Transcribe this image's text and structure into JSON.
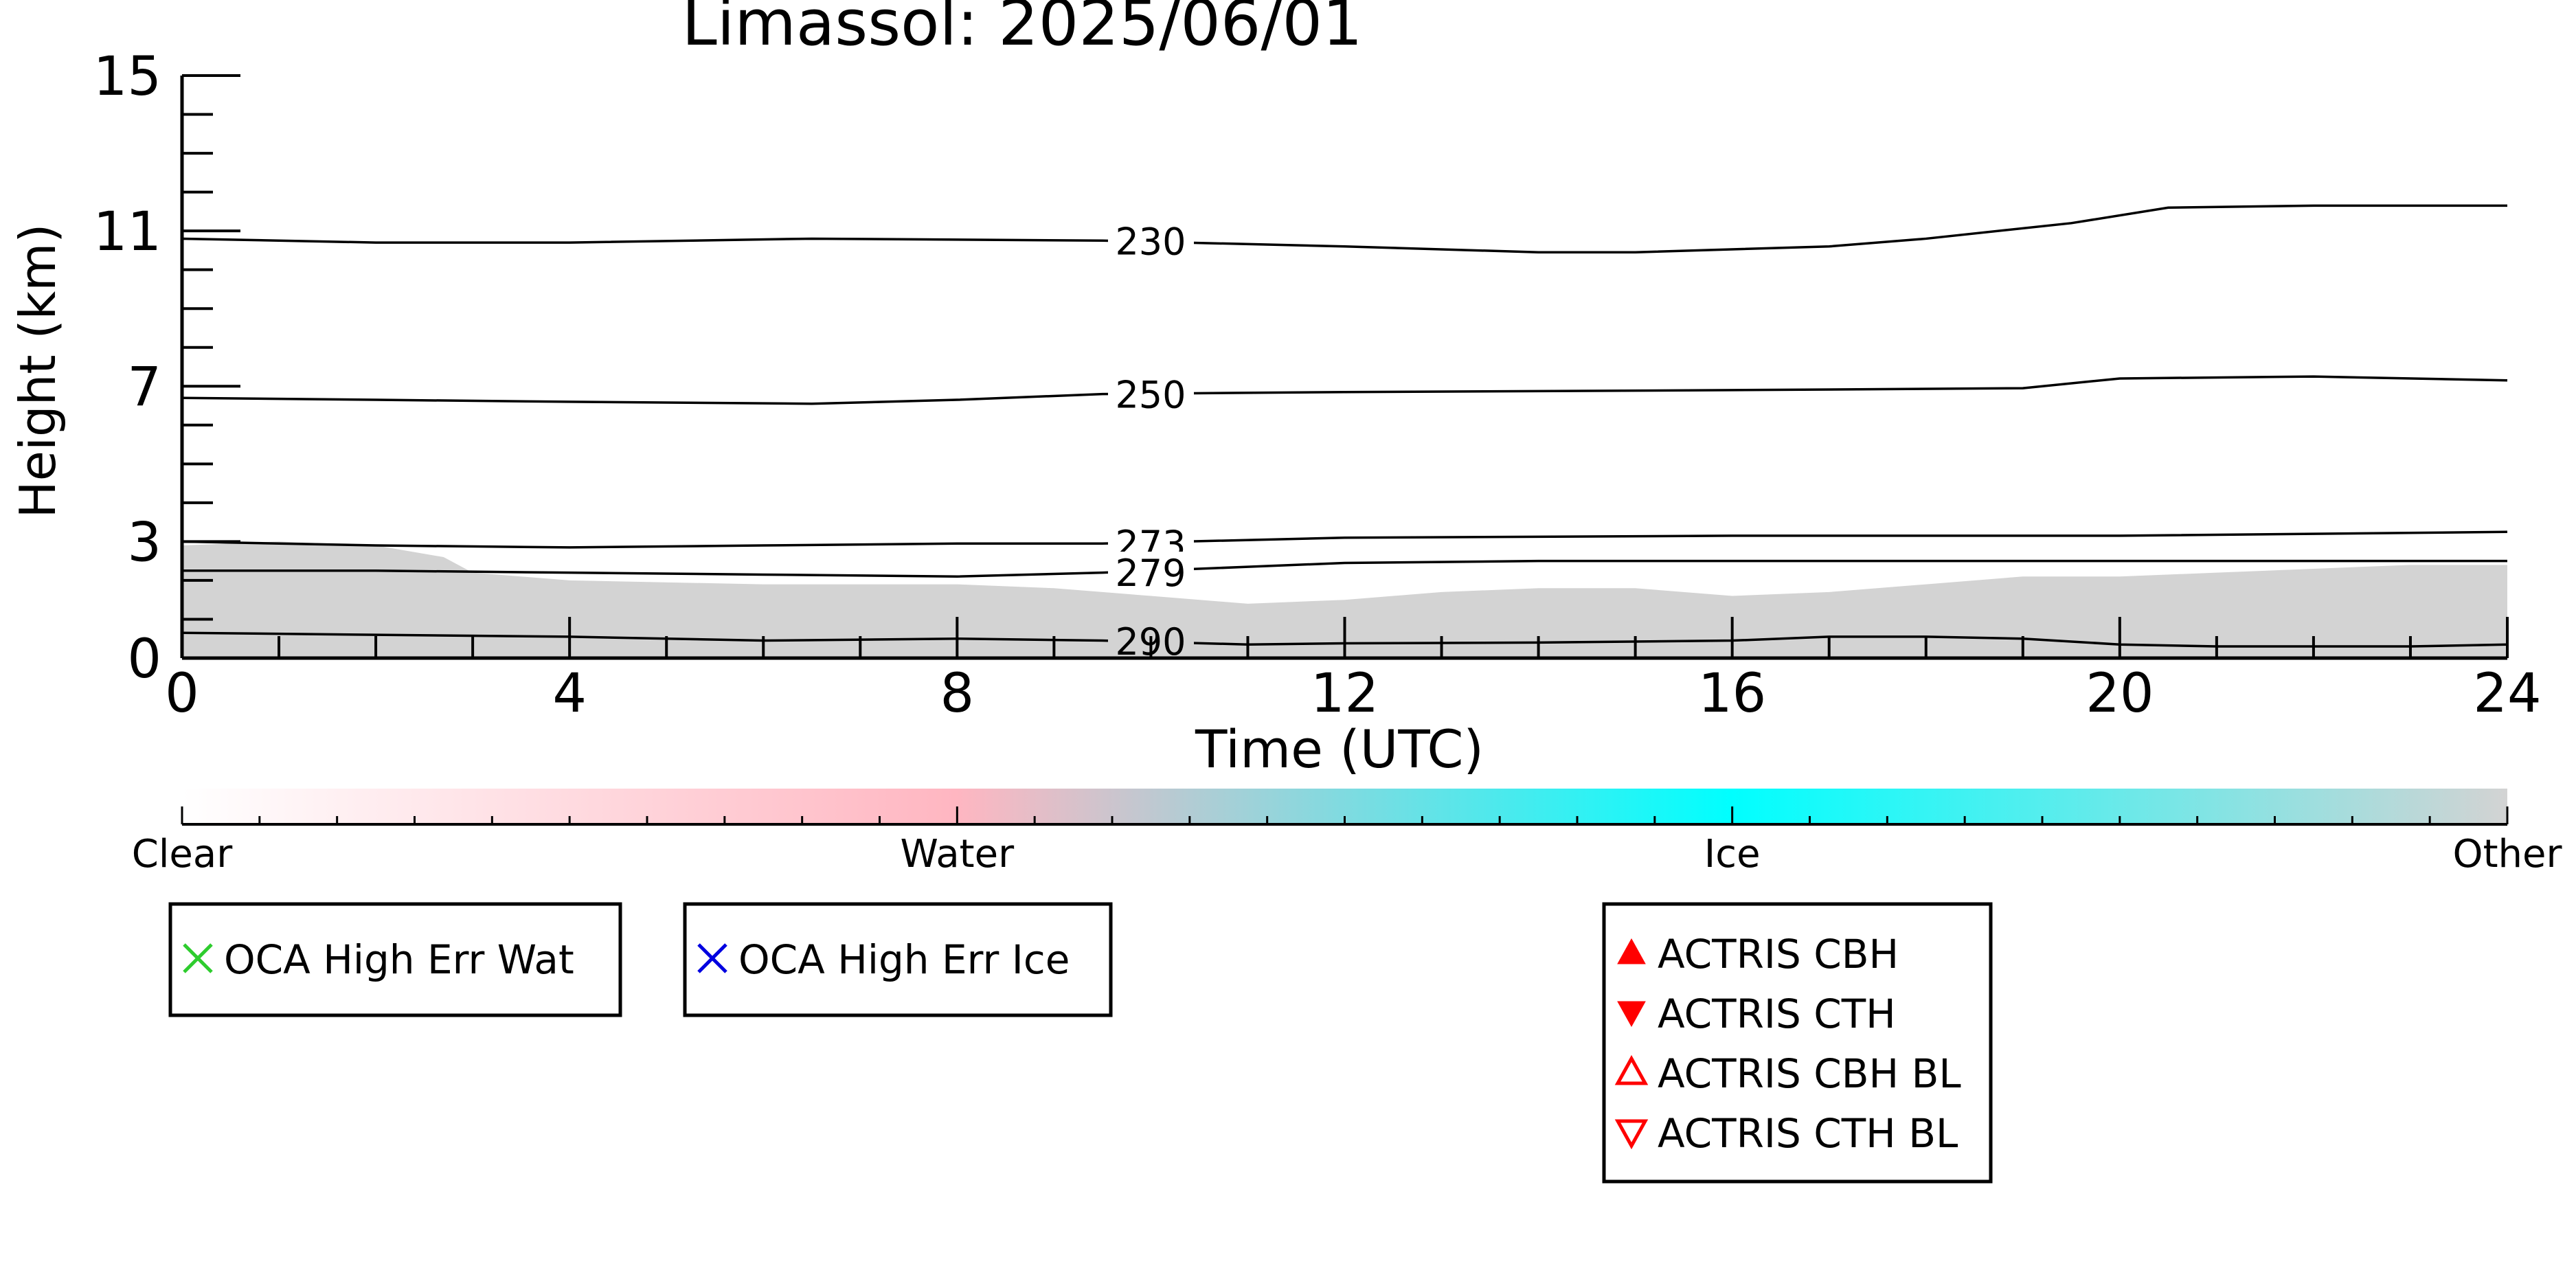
{
  "chart_data": {
    "type": "line",
    "title": "Limassol: 2025/06/01",
    "xlabel": "Time (UTC)",
    "ylabel": "Height (km)",
    "xlim": [
      0,
      24
    ],
    "ylim": [
      0,
      15
    ],
    "x_ticks": [
      0,
      4,
      8,
      12,
      16,
      20,
      24
    ],
    "y_ticks": [
      0,
      3,
      7,
      11,
      15
    ],
    "grid": false,
    "background_fill": {
      "name": "Other",
      "color": "#d3d3d3",
      "x": [
        0,
        1,
        2,
        2.7,
        3,
        4,
        6,
        8,
        9,
        10,
        11,
        12,
        13,
        14,
        15,
        16,
        17,
        18,
        19,
        20,
        21,
        22,
        23,
        24
      ],
      "top": [
        2.9,
        3.0,
        2.9,
        2.6,
        2.2,
        2.0,
        1.9,
        1.9,
        1.8,
        1.6,
        1.4,
        1.5,
        1.7,
        1.8,
        1.8,
        1.6,
        1.7,
        1.9,
        2.1,
        2.1,
        2.2,
        2.3,
        2.4,
        2.4
      ]
    },
    "contours": {
      "unit_hint": "",
      "series": [
        {
          "name": "230",
          "label_x": 9.6,
          "x": [
            0,
            2,
            4,
            6.5,
            9.5,
            12,
            14,
            15,
            17,
            18,
            19.5,
            20.5,
            22,
            24
          ],
          "y": [
            10.8,
            10.7,
            10.7,
            10.8,
            10.75,
            10.6,
            10.45,
            10.45,
            10.6,
            10.8,
            11.2,
            11.6,
            11.65,
            11.65
          ]
        },
        {
          "name": "250",
          "label_x": 9.6,
          "x": [
            0,
            2,
            4,
            6.5,
            8,
            9.5,
            12,
            16,
            19,
            20,
            22,
            24
          ],
          "y": [
            6.7,
            6.65,
            6.6,
            6.55,
            6.65,
            6.8,
            6.85,
            6.9,
            6.95,
            7.2,
            7.25,
            7.15
          ]
        },
        {
          "name": "273",
          "label_x": 9.6,
          "x": [
            0,
            2,
            4,
            6,
            8,
            9.5,
            12,
            16,
            20,
            24
          ],
          "y": [
            3.0,
            2.9,
            2.85,
            2.9,
            2.95,
            2.95,
            3.1,
            3.15,
            3.15,
            3.25
          ]
        },
        {
          "name": "279",
          "label_x": 9.6,
          "x": [
            0,
            2,
            4,
            6,
            8,
            9.5,
            11,
            12,
            14,
            16,
            18,
            20,
            22,
            24
          ],
          "y": [
            2.25,
            2.25,
            2.2,
            2.15,
            2.1,
            2.2,
            2.35,
            2.45,
            2.5,
            2.5,
            2.5,
            2.5,
            2.5,
            2.5
          ]
        },
        {
          "name": "290",
          "label_x": 9.6,
          "x": [
            0,
            2,
            4,
            6,
            8,
            9.5,
            11,
            12,
            14,
            16,
            17,
            18,
            19,
            20,
            21,
            22,
            23,
            24
          ],
          "y": [
            0.65,
            0.6,
            0.55,
            0.45,
            0.5,
            0.45,
            0.35,
            0.38,
            0.4,
            0.45,
            0.55,
            0.55,
            0.5,
            0.35,
            0.3,
            0.3,
            0.3,
            0.35
          ]
        }
      ]
    },
    "colorbar": {
      "labels": [
        "Clear",
        "Water",
        "Ice",
        "Other"
      ],
      "stops": [
        {
          "pos": 0.0,
          "color": "#ffffff"
        },
        {
          "pos": 0.333,
          "color": "#ffb6c1"
        },
        {
          "pos": 0.666,
          "color": "#00ffff"
        },
        {
          "pos": 1.0,
          "color": "#d3d3d3"
        }
      ],
      "minor_ticks": 30
    },
    "legends": [
      {
        "items": [
          {
            "label": "OCA High Err Wat",
            "marker": "x",
            "color": "#2ecc2e"
          }
        ]
      },
      {
        "items": [
          {
            "label": "OCA High Err Ice",
            "marker": "x",
            "color": "#0000e0"
          }
        ]
      },
      {
        "items": [
          {
            "label": "ACTRIS CBH",
            "marker": "triangle-up-filled",
            "color": "#ff0000"
          },
          {
            "label": "ACTRIS CTH",
            "marker": "triangle-down-filled",
            "color": "#ff0000"
          },
          {
            "label": "ACTRIS CBH BL",
            "marker": "triangle-up-open",
            "color": "#ff0000"
          },
          {
            "label": "ACTRIS CTH BL",
            "marker": "triangle-down-open",
            "color": "#ff0000"
          }
        ]
      }
    ]
  }
}
